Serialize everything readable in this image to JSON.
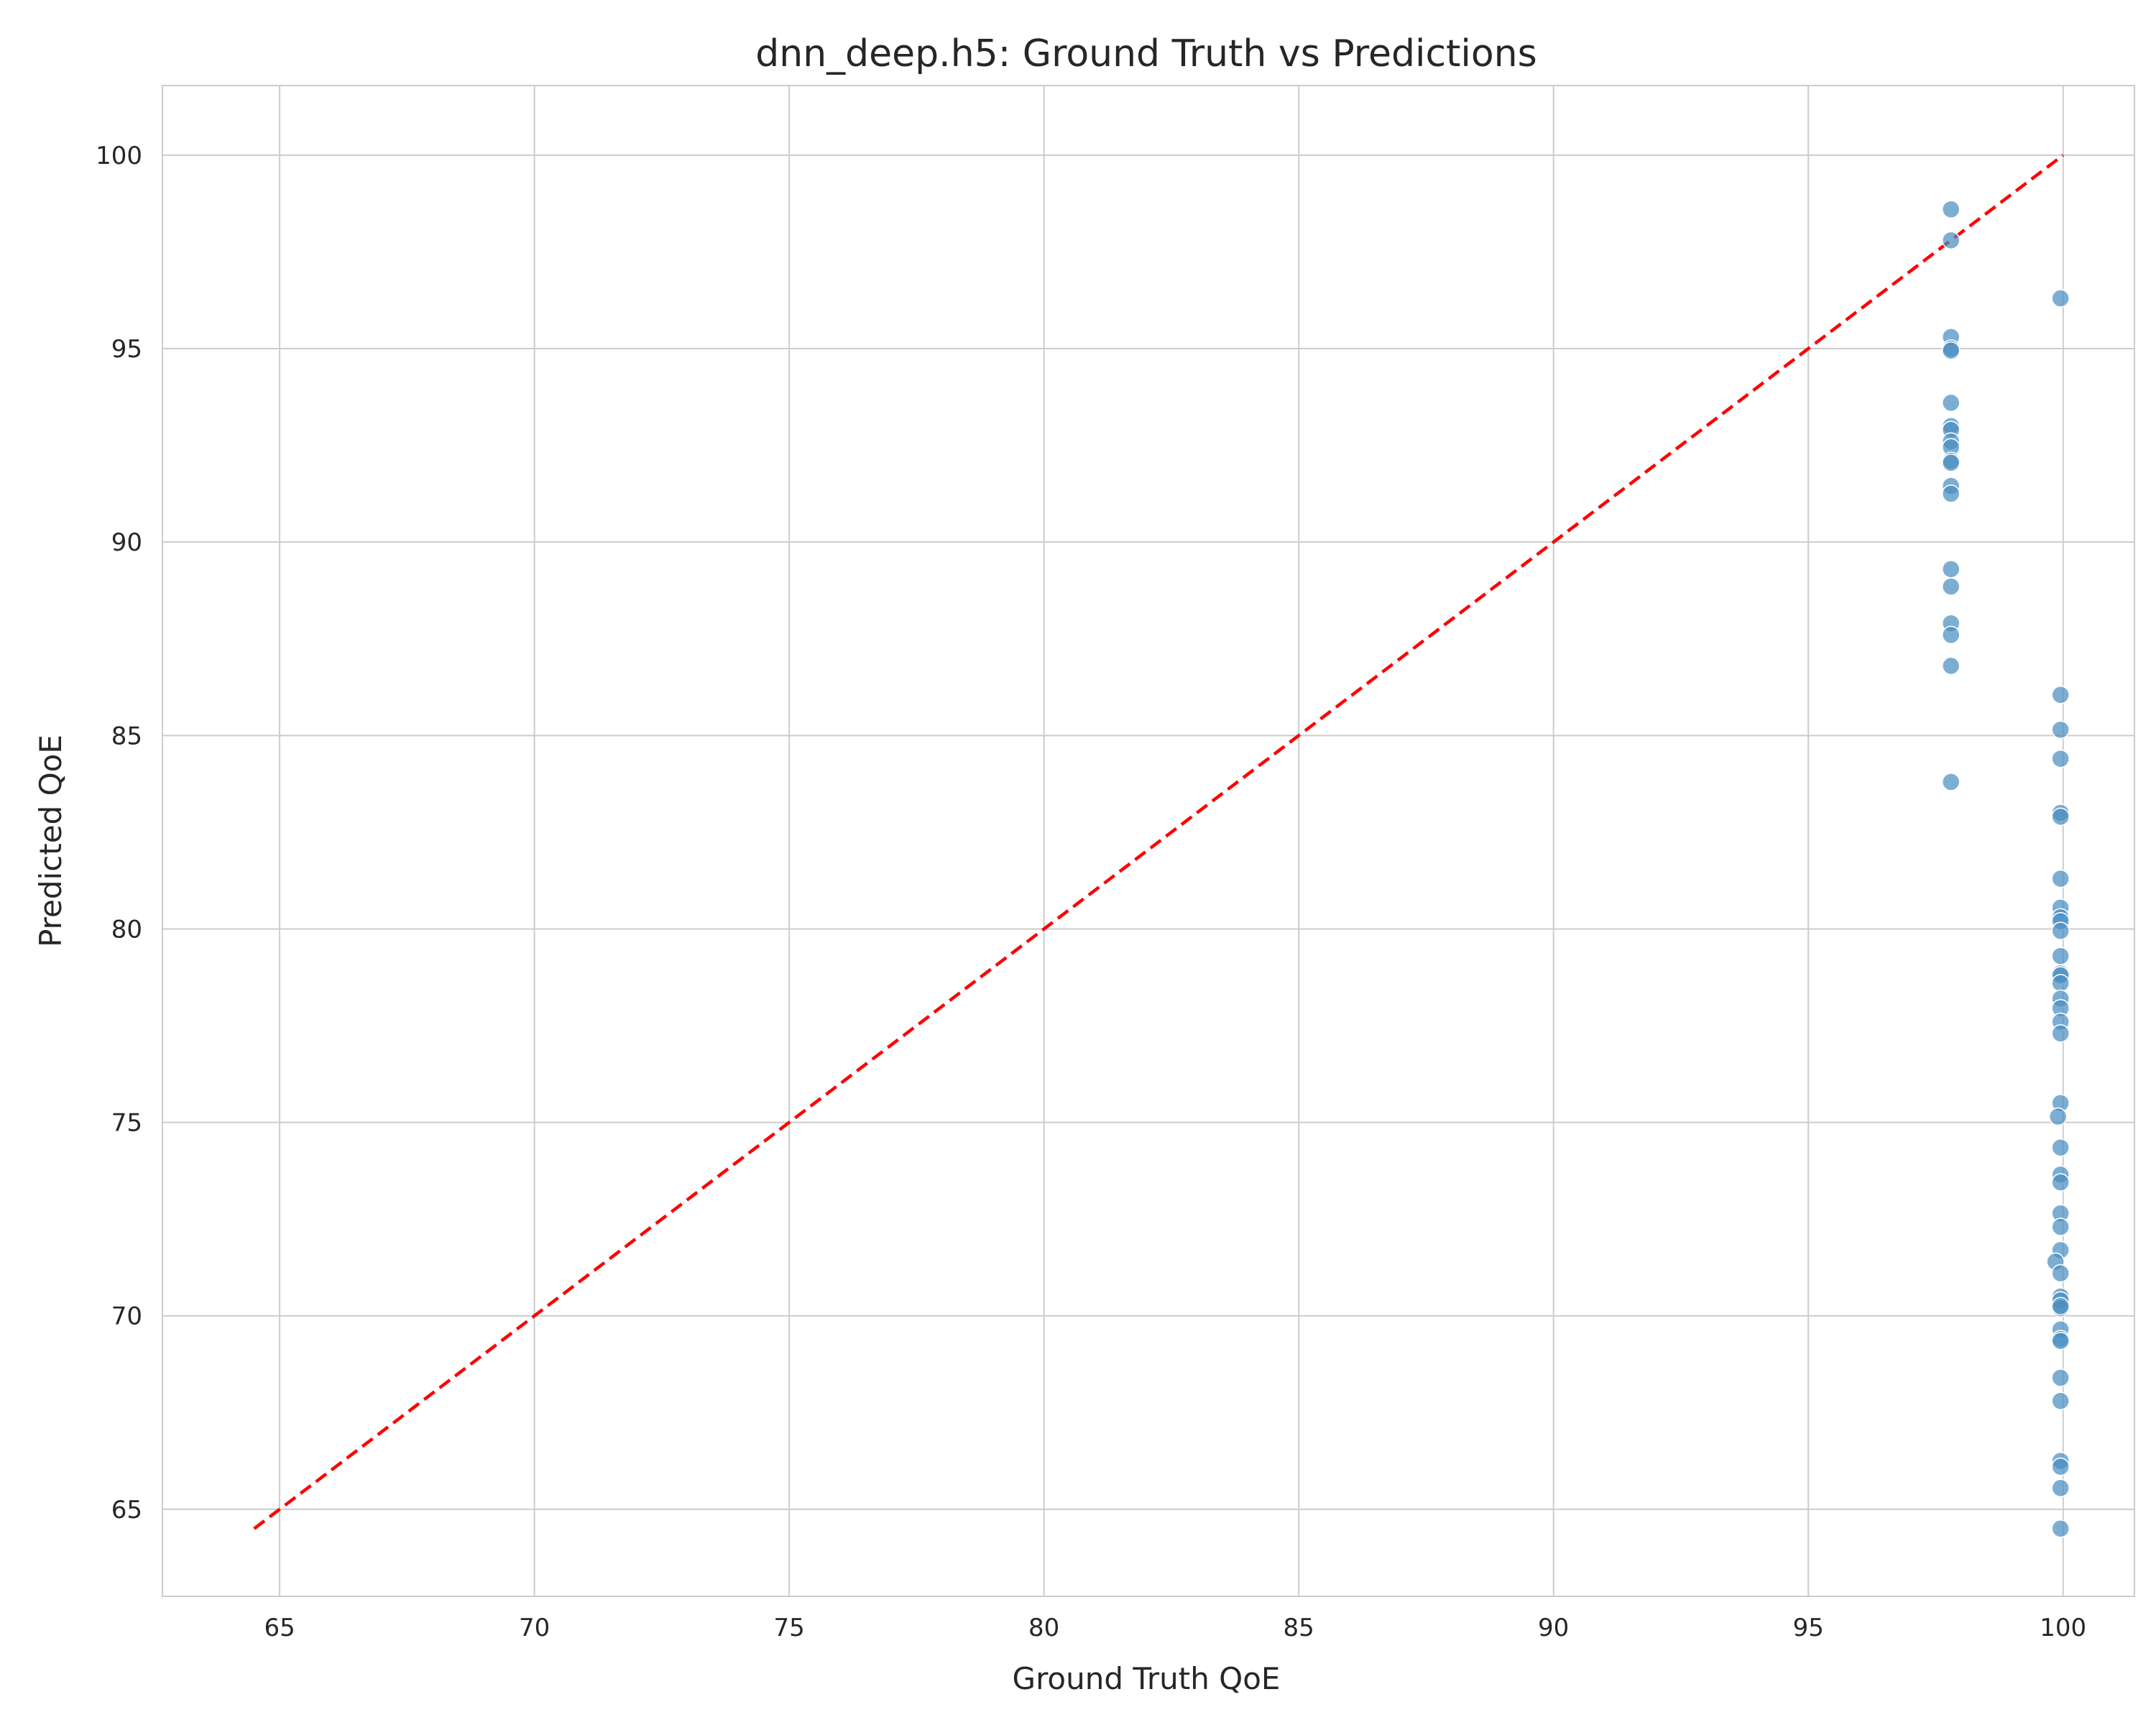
{
  "chart_data": {
    "type": "scatter",
    "title": "dnn_deep.h5: Ground Truth vs Predictions",
    "xlabel": "Ground Truth QoE",
    "ylabel": "Predicted QoE",
    "xlim": [
      62.7,
      101.4
    ],
    "ylim": [
      62.75,
      101.8
    ],
    "xticks": [
      "65",
      "70",
      "75",
      "80",
      "85",
      "90",
      "95",
      "100"
    ],
    "yticks": [
      "65",
      "70",
      "75",
      "80",
      "85",
      "90",
      "95",
      "100"
    ],
    "grid": true,
    "legend": "none",
    "point_color": "#4a8fc2",
    "reference_line": {
      "style": "dashed",
      "color": "#ff0000",
      "x": [
        64.5,
        100
      ],
      "y": [
        64.5,
        100
      ]
    },
    "points": [
      {
        "x": 97.8,
        "y": 98.6
      },
      {
        "x": 97.8,
        "y": 97.8
      },
      {
        "x": 97.8,
        "y": 95.3
      },
      {
        "x": 97.8,
        "y": 95.0
      },
      {
        "x": 97.8,
        "y": 94.95
      },
      {
        "x": 97.8,
        "y": 93.6
      },
      {
        "x": 97.8,
        "y": 93.0
      },
      {
        "x": 97.8,
        "y": 92.9
      },
      {
        "x": 97.8,
        "y": 92.6
      },
      {
        "x": 97.8,
        "y": 92.45
      },
      {
        "x": 97.8,
        "y": 92.1
      },
      {
        "x": 97.8,
        "y": 92.05
      },
      {
        "x": 97.8,
        "y": 91.45
      },
      {
        "x": 97.8,
        "y": 91.25
      },
      {
        "x": 97.8,
        "y": 89.3
      },
      {
        "x": 97.8,
        "y": 88.85
      },
      {
        "x": 97.8,
        "y": 87.9
      },
      {
        "x": 97.8,
        "y": 87.6
      },
      {
        "x": 97.8,
        "y": 86.8
      },
      {
        "x": 97.8,
        "y": 83.8
      },
      {
        "x": 99.95,
        "y": 96.3
      },
      {
        "x": 99.95,
        "y": 86.05
      },
      {
        "x": 99.95,
        "y": 85.15
      },
      {
        "x": 99.95,
        "y": 84.4
      },
      {
        "x": 99.95,
        "y": 83.0
      },
      {
        "x": 99.95,
        "y": 82.9
      },
      {
        "x": 99.95,
        "y": 81.3
      },
      {
        "x": 99.95,
        "y": 80.55
      },
      {
        "x": 99.95,
        "y": 80.3
      },
      {
        "x": 99.95,
        "y": 80.2
      },
      {
        "x": 99.95,
        "y": 79.95
      },
      {
        "x": 99.95,
        "y": 79.3
      },
      {
        "x": 99.95,
        "y": 78.85
      },
      {
        "x": 99.95,
        "y": 78.8
      },
      {
        "x": 99.95,
        "y": 78.6
      },
      {
        "x": 99.95,
        "y": 78.2
      },
      {
        "x": 99.95,
        "y": 77.95
      },
      {
        "x": 99.95,
        "y": 77.6
      },
      {
        "x": 99.95,
        "y": 77.3
      },
      {
        "x": 99.95,
        "y": 75.5
      },
      {
        "x": 99.9,
        "y": 75.15
      },
      {
        "x": 99.95,
        "y": 74.35
      },
      {
        "x": 99.95,
        "y": 73.65
      },
      {
        "x": 99.95,
        "y": 73.45
      },
      {
        "x": 99.95,
        "y": 72.65
      },
      {
        "x": 99.95,
        "y": 72.3
      },
      {
        "x": 99.95,
        "y": 71.7
      },
      {
        "x": 99.85,
        "y": 71.4
      },
      {
        "x": 99.95,
        "y": 71.1
      },
      {
        "x": 99.95,
        "y": 70.5
      },
      {
        "x": 99.95,
        "y": 70.4
      },
      {
        "x": 99.95,
        "y": 70.2
      },
      {
        "x": 99.95,
        "y": 70.25
      },
      {
        "x": 99.95,
        "y": 69.65
      },
      {
        "x": 99.95,
        "y": 69.4
      },
      {
        "x": 99.95,
        "y": 69.35
      },
      {
        "x": 99.95,
        "y": 68.4
      },
      {
        "x": 99.95,
        "y": 67.8
      },
      {
        "x": 99.95,
        "y": 66.25
      },
      {
        "x": 99.95,
        "y": 66.1
      },
      {
        "x": 99.95,
        "y": 65.55
      },
      {
        "x": 99.95,
        "y": 64.5
      }
    ]
  }
}
